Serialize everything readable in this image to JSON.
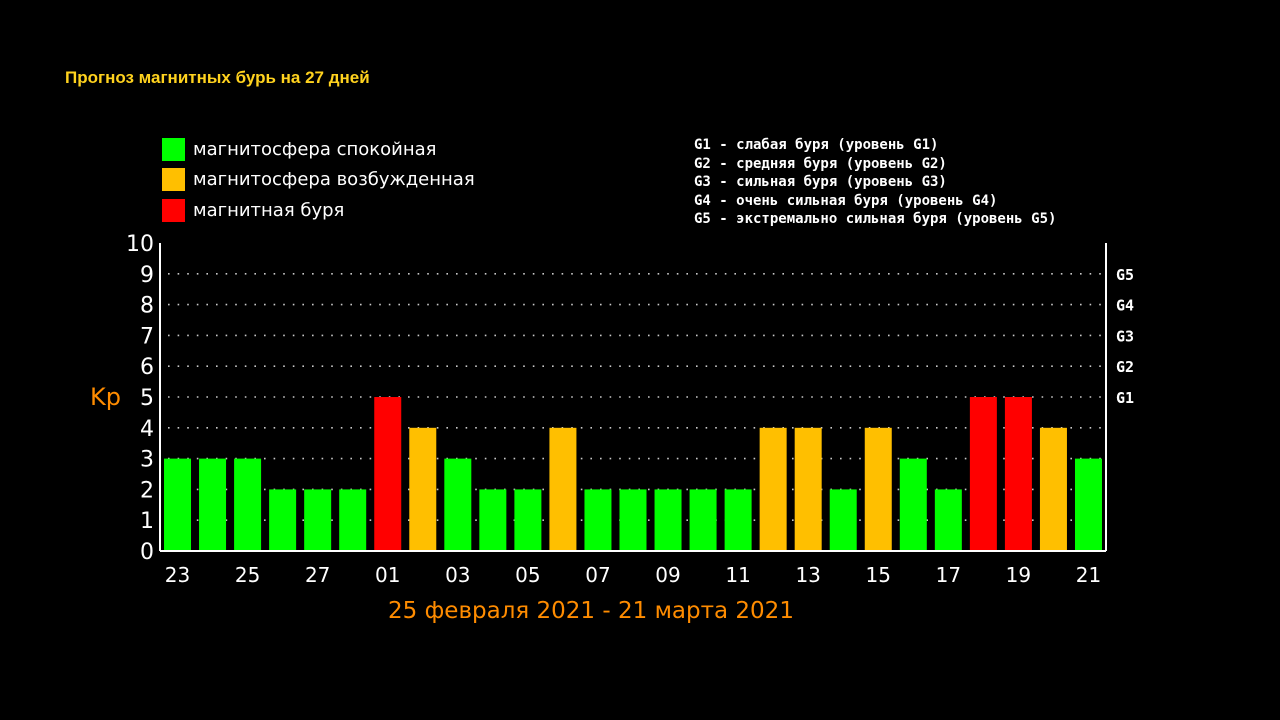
{
  "title": "Прогноз магнитных бурь на 27 дней",
  "legend": [
    {
      "label": "магнитосфера спокойная",
      "color": "#00ff00"
    },
    {
      "label": "магнитосфера возбужденная",
      "color": "#ffbf00"
    },
    {
      "label": "магнитная буря",
      "color": "#ff0000"
    }
  ],
  "g_levels": [
    "G1 - слабая буря (уровень G1)",
    "G2 - средняя буря (уровень G2)",
    "G3 - сильная буря (уровень G3)",
    "G4 - очень сильная буря (уровень G4)",
    "G5 - экстремально сильная буря (уровень G5)"
  ],
  "chart_data": {
    "type": "bar",
    "title": "Прогноз магнитных бурь на 27 дней",
    "xlabel": "25 февраля 2021 - 21 марта 2021",
    "ylabel": "Kp",
    "ylim": [
      0,
      10
    ],
    "yticks": [
      0,
      1,
      2,
      3,
      4,
      5,
      6,
      7,
      8,
      9,
      10
    ],
    "x_tick_labels": [
      "23",
      "25",
      "27",
      "01",
      "03",
      "05",
      "07",
      "09",
      "11",
      "13",
      "15",
      "17",
      "19",
      "21"
    ],
    "values": [
      3,
      3,
      3,
      2,
      2,
      2,
      5,
      4,
      3,
      2,
      2,
      4,
      2,
      2,
      2,
      2,
      2,
      4,
      4,
      2,
      4,
      3,
      2,
      5,
      5,
      4,
      3
    ],
    "right_axis": [
      {
        "label": "G1",
        "value": 5
      },
      {
        "label": "G2",
        "value": 6
      },
      {
        "label": "G3",
        "value": 7
      },
      {
        "label": "G4",
        "value": 8
      },
      {
        "label": "G5",
        "value": 9
      }
    ],
    "grid": true,
    "colors": {
      "low": "#00ff00",
      "mid": "#ffbf00",
      "high": "#ff0000",
      "accent": "#ff8c00"
    }
  }
}
